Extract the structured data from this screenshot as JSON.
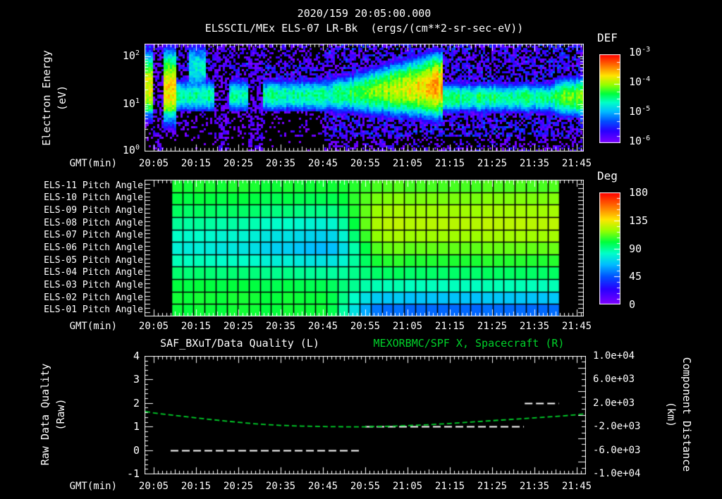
{
  "colors": {
    "background": "#000000",
    "text": "#ffffff",
    "accent_green": "#00d22a",
    "frame": "#ffffff",
    "grid": "#000000"
  },
  "header": {
    "title": "2020/159 20:05:00.000",
    "subtitle": "ELSSCIL/MEx ELS-07 LR-Bk  (ergs/(cm**2-sr-sec-eV))"
  },
  "time_axis": {
    "caption": "GMT(min)",
    "labels": [
      "20:05",
      "20:15",
      "20:25",
      "20:35",
      "20:45",
      "20:55",
      "21:05",
      "21:15",
      "21:25",
      "21:35",
      "21:45"
    ]
  },
  "energy_panel": {
    "ylabel": "Electron Energy\n(eV)",
    "ytick_exponents": [
      2,
      1,
      0
    ],
    "colorbar": {
      "title": "DEF",
      "tick_exponents": [
        -3,
        -4,
        -5,
        -6
      ]
    }
  },
  "pitch_panel": {
    "row_labels": [
      "ELS-11 Pitch Angle",
      "ELS-10 Pitch Angle",
      "ELS-09 Pitch Angle",
      "ELS-08 Pitch Angle",
      "ELS-07 Pitch Angle",
      "ELS-06 Pitch Angle",
      "ELS-05 Pitch Angle",
      "ELS-04 Pitch Angle",
      "ELS-03 Pitch Angle",
      "ELS-02 Pitch Angle",
      "ELS-01 Pitch Angle"
    ],
    "colorbar": {
      "title": "Deg",
      "ticks": [
        "180",
        "135",
        "90",
        "45",
        "0"
      ]
    }
  },
  "quality_panel": {
    "title_left": "SAF_BXuT/Data Quality (L)",
    "title_right": "MEXORBMC/SPF X, Spacecraft (R)",
    "ylabel_left": "Raw Data Quality\n(Raw)",
    "ylabel_right": "Component Distance\n(km)",
    "left_ticks": [
      "4",
      "3",
      "2",
      "1",
      "0",
      "-1"
    ],
    "right_ticks": [
      "1.0e+04",
      "6.0e+03",
      "2.0e+03",
      "-2.0e+03",
      "-6.0e+03",
      "-1.0e+04"
    ]
  },
  "chart_data": [
    {
      "type": "heatmap",
      "name": "electron-energy-spectrogram",
      "title": "ELSSCIL/MEx ELS-07 LR-Bk",
      "units": "ergs/(cm**2-sr-sec-eV)",
      "xlabel": "GMT(min)",
      "x_ticks": [
        "20:05",
        "20:15",
        "20:25",
        "20:35",
        "20:45",
        "20:55",
        "21:05",
        "21:15",
        "21:25",
        "21:35",
        "21:45"
      ],
      "ylabel": "Electron Energy (eV)",
      "y_scale": "log",
      "y_range_eV": [
        1,
        186
      ],
      "colorbar": {
        "label": "DEF",
        "log10_flux_range": [
          -6,
          -3
        ]
      },
      "features": {
        "description": "broad electron band near 10-40 eV brightening and rising to ~70 eV peak at 21:13 then sharp dropoff; bright full-energy bursts at 20:05 and 20:09; data gaps near 20:16-20:18 and 20:28-20:31; faint high-energy stripe 20:13-20:17",
        "band_segments_t_a_c_w": [
          [
            0.0,
            0.41,
            -4.55,
            -4.55,
            1.17,
            1.17,
            0.23,
            0.23
          ],
          [
            0.41,
            0.68,
            -4.55,
            -3.55,
            1.17,
            1.39,
            0.23,
            0.41
          ],
          [
            0.68,
            0.935,
            -4.45,
            -4.45,
            1.13,
            1.13,
            0.21,
            0.21
          ],
          [
            0.935,
            1.0,
            -4.2,
            -4.1,
            1.15,
            1.15,
            0.25,
            0.26
          ]
        ],
        "blobs_t_amp_c_w": [
          [
            0.002,
            0.017,
            -3.8,
            1.35,
            0.55
          ],
          [
            0.042,
            0.072,
            -3.7,
            1.3,
            0.6
          ],
          [
            0.1,
            0.142,
            -4.7,
            1.75,
            0.45
          ]
        ],
        "gaps_t": [
          [
            0.018,
            0.042
          ],
          [
            0.16,
            0.195
          ],
          [
            0.236,
            0.272
          ]
        ],
        "background_log10": -5.8
      }
    },
    {
      "type": "heatmap",
      "name": "pitch-angle-per-sector",
      "rows": [
        "ELS-11",
        "ELS-10",
        "ELS-09",
        "ELS-08",
        "ELS-07",
        "ELS-06",
        "ELS-05",
        "ELS-04",
        "ELS-03",
        "ELS-02",
        "ELS-01"
      ],
      "colorbar": {
        "label": "Deg",
        "range": [
          0,
          180
        ]
      },
      "data_start": "20:09",
      "data_end": "21:41",
      "columns": 35,
      "deg_left_profile": [
        104,
        101,
        97,
        90,
        84,
        80,
        86,
        95,
        101,
        103,
        102
      ],
      "deg_left_dip": [
        2,
        4,
        8,
        14,
        18,
        20,
        14,
        8,
        4,
        2,
        0
      ],
      "deg_right_profile": [
        110,
        116,
        121,
        125,
        121,
        113,
        105,
        96,
        85,
        67,
        50
      ],
      "transition_center_frac": 0.47
    },
    {
      "type": "line",
      "name": "quality-and-spacecraft-distance",
      "title_left": "SAF_BXuT/Data Quality (L)",
      "title_right": "MEXORBMC/SPF X, Spacecraft (R)",
      "xlabel": "GMT(min)",
      "left_axis": {
        "label": "Raw Data Quality (Raw)",
        "range": [
          -1,
          4
        ],
        "ticks": [
          4,
          3,
          2,
          1,
          0,
          -1
        ]
      },
      "right_axis": {
        "label": "Component Distance (km)",
        "range": [
          -10000,
          10000
        ],
        "ticks": [
          10000,
          6000,
          2000,
          -2000,
          -6000,
          -10000
        ]
      },
      "series": [
        {
          "name": "SAF_BXuT/Data Quality (L)",
          "axis": "left",
          "color": "#ffffff",
          "style": "dashed",
          "segments_t0_t1_value": [
            [
              4,
              49.3,
              0
            ],
            [
              50,
              87.5,
              1
            ],
            [
              87.7,
              95.8,
              2
            ]
          ]
        },
        {
          "name": "MEXORBMC/SPF X, Spacecraft (R)",
          "axis": "right",
          "color": "#00d22a",
          "style": "dashed",
          "points_minutes_km": [
            [
              -2,
              560
            ],
            [
              0,
              320
            ],
            [
              5,
              -120
            ],
            [
              10,
              -520
            ],
            [
              15,
              -920
            ],
            [
              20,
              -1280
            ],
            [
              25,
              -1600
            ],
            [
              30,
              -1800
            ],
            [
              35,
              -1920
            ],
            [
              40,
              -2000
            ],
            [
              45,
              -2040
            ],
            [
              50,
              -2040
            ],
            [
              55,
              -1960
            ],
            [
              60,
              -1840
            ],
            [
              65,
              -1680
            ],
            [
              70,
              -1480
            ],
            [
              75,
              -1240
            ],
            [
              80,
              -1000
            ],
            [
              85,
              -760
            ],
            [
              90,
              -520
            ],
            [
              95,
              -280
            ],
            [
              100,
              0
            ],
            [
              102,
              180
            ]
          ]
        }
      ]
    }
  ]
}
